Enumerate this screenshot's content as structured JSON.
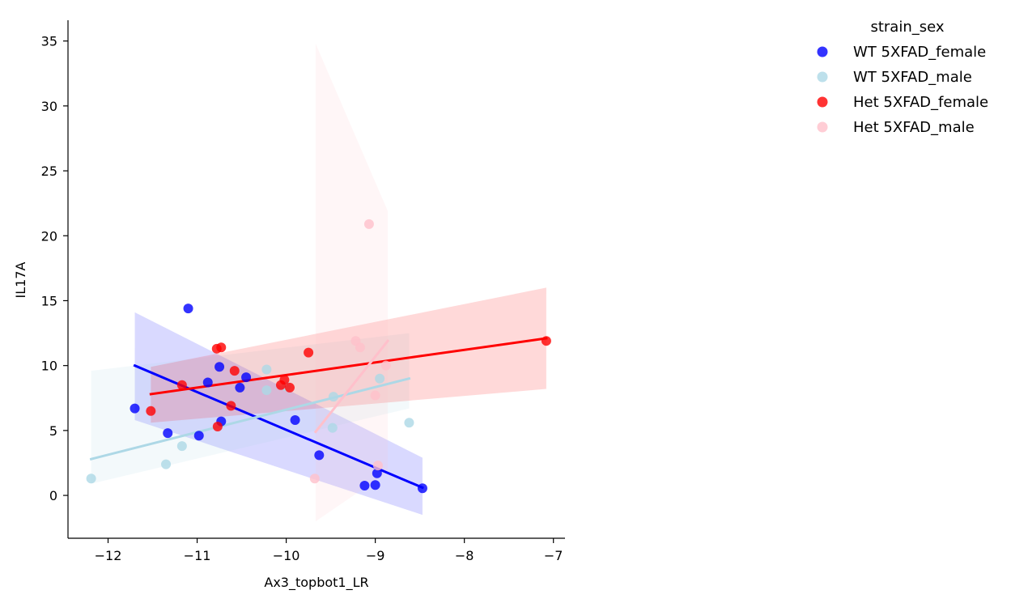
{
  "chart_data": {
    "type": "scatter",
    "title": "",
    "xlabel": "Ax3_topbot1_LR",
    "ylabel": "IL17A",
    "xlim": [
      -12.45,
      -6.87
    ],
    "ylim": [
      -3.3,
      36.6
    ],
    "xticks": [
      -12,
      -11,
      -10,
      -9,
      -8,
      -7
    ],
    "xtick_labels": [
      "−12",
      "−11",
      "−10",
      "−9",
      "−8",
      "−7"
    ],
    "yticks": [
      0,
      5,
      10,
      15,
      20,
      25,
      30,
      35
    ],
    "ytick_labels": [
      "0",
      "5",
      "10",
      "15",
      "20",
      "25",
      "30",
      "35"
    ],
    "grid": false,
    "legend": {
      "title": "strain_sex",
      "placement": "outside-right-top"
    },
    "series": [
      {
        "name": "WT 5XFAD_female",
        "color": "#0000ff",
        "points": [
          [
            -11.7,
            6.7
          ],
          [
            -11.1,
            14.4
          ],
          [
            -11.33,
            4.8
          ],
          [
            -10.98,
            4.6
          ],
          [
            -10.88,
            8.7
          ],
          [
            -10.75,
            9.9
          ],
          [
            -10.73,
            5.7
          ],
          [
            -10.52,
            8.3
          ],
          [
            -10.45,
            9.1
          ],
          [
            -9.9,
            5.8
          ],
          [
            -9.63,
            3.1
          ],
          [
            -9.12,
            0.75
          ],
          [
            -9.0,
            0.8
          ],
          [
            -8.98,
            1.7
          ],
          [
            -8.47,
            0.55
          ]
        ],
        "regression": {
          "x": [
            -11.7,
            -8.47
          ],
          "y": [
            10.0,
            0.6
          ],
          "band": [
            14.1,
            5.8,
            2.9,
            -1.5
          ]
        }
      },
      {
        "name": "WT 5XFAD_male",
        "color": "#add8e6",
        "points": [
          [
            -12.19,
            1.3
          ],
          [
            -11.35,
            2.4
          ],
          [
            -11.17,
            3.8
          ],
          [
            -10.22,
            8.1
          ],
          [
            -10.22,
            9.7
          ],
          [
            -10.0,
            8.4
          ],
          [
            -9.47,
            7.6
          ],
          [
            -9.48,
            5.2
          ],
          [
            -8.95,
            9.0
          ],
          [
            -8.62,
            5.6
          ]
        ],
        "regression": {
          "x": [
            -12.19,
            -8.62
          ],
          "y": [
            2.8,
            9.0
          ],
          "band": [
            9.6,
            0.9,
            12.5,
            6.7
          ]
        }
      },
      {
        "name": "Het 5XFAD_female",
        "color": "#ff0000",
        "points": [
          [
            -11.52,
            6.5
          ],
          [
            -11.17,
            8.5
          ],
          [
            -10.78,
            11.3
          ],
          [
            -10.73,
            11.4
          ],
          [
            -10.77,
            5.3
          ],
          [
            -10.62,
            6.9
          ],
          [
            -10.58,
            9.6
          ],
          [
            -10.06,
            8.5
          ],
          [
            -10.02,
            8.9
          ],
          [
            -9.96,
            8.3
          ],
          [
            -9.75,
            11.0
          ],
          [
            -7.08,
            11.9
          ]
        ],
        "regression": {
          "x": [
            -11.52,
            -7.08
          ],
          "y": [
            7.8,
            12.1
          ],
          "band": [
            9.9,
            5.6,
            16.0,
            8.2
          ]
        }
      },
      {
        "name": "Het 5XFAD_male",
        "color": "#ffc0cb",
        "points": [
          [
            -9.68,
            1.3
          ],
          [
            -9.22,
            11.9
          ],
          [
            -9.17,
            11.4
          ],
          [
            -9.07,
            20.9
          ],
          [
            -9.0,
            7.7
          ],
          [
            -8.97,
            2.3
          ],
          [
            -8.88,
            10.0
          ]
        ],
        "regression": {
          "x": [
            -9.67,
            -8.86
          ],
          "y": [
            4.9,
            11.9
          ],
          "band": [
            34.8,
            -2.0,
            21.9,
            1.8
          ]
        }
      }
    ]
  }
}
